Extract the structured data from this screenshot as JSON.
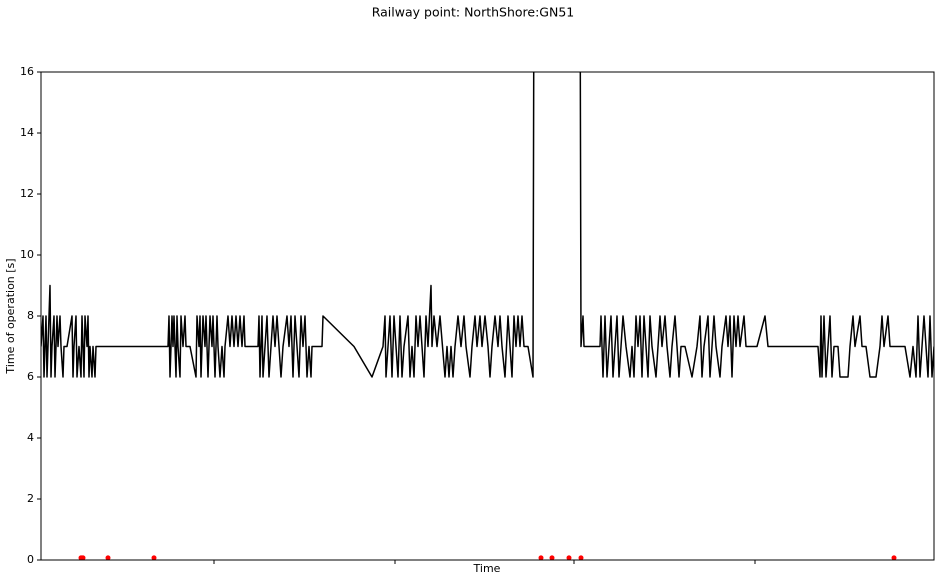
{
  "chart_data": {
    "type": "line",
    "title": "Railway point: NorthShore:GN51",
    "xlabel": "Time",
    "ylabel": "Time of operation [s]",
    "xlim": [
      41,
      934
    ],
    "ylim": [
      0,
      16
    ],
    "xticks": [
      214,
      395,
      574,
      755
    ],
    "yticks": [
      0,
      2,
      4,
      6,
      8,
      10,
      12,
      14,
      16
    ],
    "series": [
      {
        "type": "line",
        "color": "#000000",
        "x": [
          41,
          43,
          44,
          45,
          46,
          47,
          48,
          49,
          50,
          51,
          52,
          54,
          55,
          57,
          58,
          60,
          61,
          63,
          64,
          67,
          72,
          73,
          74,
          76,
          77,
          79,
          81,
          82,
          84,
          85,
          87,
          88,
          89,
          90,
          92,
          93,
          95,
          96,
          168,
          169,
          170,
          172,
          173,
          174,
          176,
          177,
          178,
          180,
          181,
          183,
          185,
          186,
          190,
          196,
          197,
          199,
          200,
          201,
          203,
          205,
          206,
          208,
          210,
          212,
          213,
          215,
          217,
          218,
          220,
          222,
          224,
          225,
          228,
          230,
          232,
          234,
          236,
          238,
          240,
          242,
          244,
          245,
          258,
          259,
          260,
          262,
          263,
          265,
          267,
          269,
          271,
          273,
          275,
          277,
          279,
          281,
          283,
          287,
          289,
          291,
          293,
          295,
          297,
          299,
          301,
          303,
          305,
          307,
          309,
          311,
          312,
          322,
          323,
          354,
          372,
          383,
          385,
          386,
          388,
          390,
          392,
          394,
          396,
          398,
          400,
          402,
          404,
          408,
          410,
          412,
          414,
          416,
          418,
          420,
          422,
          424,
          426,
          428,
          431,
          432,
          434,
          437,
          440,
          445,
          447,
          449,
          451,
          453,
          455,
          458,
          461,
          464,
          466,
          470,
          472,
          475,
          477,
          480,
          482,
          485,
          488,
          490,
          492,
          495,
          498,
          500,
          502,
          505,
          508,
          510,
          512,
          514,
          516,
          518,
          520,
          522,
          524,
          528,
          533,
          534,
          580,
          581,
          583,
          584,
          600,
          601,
          603,
          605,
          607,
          609,
          611,
          613,
          615,
          617,
          619,
          621,
          623,
          626,
          630,
          632,
          634,
          636,
          638,
          640,
          642,
          644,
          646,
          648,
          650,
          652,
          656,
          658,
          660,
          662,
          665,
          667,
          670,
          672,
          675,
          677,
          679,
          681,
          685,
          692,
          697,
          700,
          702,
          704,
          708,
          710,
          712,
          714,
          716,
          720,
          722,
          726,
          728,
          730,
          732,
          734,
          736,
          738,
          740,
          744,
          746,
          757,
          765,
          768,
          818,
          820,
          821,
          822,
          824,
          826,
          828,
          830,
          832,
          834,
          838,
          840,
          848,
          850,
          853,
          855,
          860,
          862,
          866,
          870,
          876,
          880,
          882,
          884,
          888,
          890,
          905,
          910,
          913,
          916,
          918,
          920,
          922,
          924,
          926,
          928,
          930,
          932,
          934
        ],
        "values": [
          7,
          8,
          6,
          7,
          8,
          6,
          7,
          8,
          9,
          6,
          7,
          8,
          6,
          8,
          7,
          8,
          7,
          6,
          7,
          7,
          8,
          6,
          7,
          8,
          6,
          7,
          6,
          8,
          6,
          8,
          7,
          8,
          6,
          7,
          6,
          7,
          6,
          7,
          7,
          8,
          6,
          8,
          7,
          8,
          6,
          8,
          7,
          6,
          8,
          7,
          8,
          7,
          7,
          6,
          8,
          7,
          8,
          6,
          8,
          7,
          8,
          6,
          8,
          7,
          8,
          6,
          8,
          7,
          6,
          7,
          6,
          7,
          8,
          7,
          8,
          7,
          8,
          7,
          8,
          7,
          8,
          7,
          7,
          8,
          6,
          8,
          6,
          7,
          8,
          6,
          7,
          8,
          7,
          8,
          7,
          6,
          7,
          8,
          7,
          8,
          6,
          8,
          7,
          6,
          8,
          7,
          8,
          6,
          7,
          6,
          7,
          7,
          8,
          7,
          6,
          7,
          8,
          6,
          7,
          8,
          6,
          8,
          7,
          6,
          8,
          6,
          7,
          8,
          6,
          7,
          6,
          8,
          7,
          8,
          7,
          6,
          8,
          7,
          9,
          7,
          8,
          7,
          8,
          6,
          7,
          6,
          7,
          6,
          7,
          8,
          7,
          8,
          7,
          6,
          7,
          8,
          7,
          8,
          7,
          8,
          7,
          6,
          7,
          8,
          7,
          8,
          7,
          6,
          8,
          7,
          6,
          8,
          7,
          8,
          7,
          8,
          7,
          7,
          6,
          20,
          20,
          7,
          8,
          7,
          7,
          8,
          6,
          8,
          6,
          7,
          8,
          6,
          7,
          8,
          6,
          7,
          8,
          7,
          6,
          7,
          6,
          8,
          7,
          8,
          6,
          8,
          7,
          6,
          8,
          7,
          6,
          7,
          8,
          7,
          8,
          7,
          6,
          7,
          8,
          7,
          6,
          7,
          7,
          6,
          7,
          8,
          6,
          7,
          8,
          6,
          7,
          8,
          7,
          6,
          7,
          8,
          7,
          8,
          6,
          8,
          7,
          8,
          7,
          8,
          7,
          7,
          8,
          7,
          7,
          6,
          8,
          6,
          8,
          6,
          7,
          8,
          6,
          7,
          7,
          6,
          6,
          7,
          8,
          7,
          8,
          7,
          7,
          6,
          6,
          7,
          8,
          7,
          8,
          7,
          7,
          6,
          7,
          6,
          8,
          6,
          7,
          8,
          7,
          6,
          8,
          6,
          7
        ]
      },
      {
        "type": "scatter",
        "color": "#ff0000",
        "x": [
          81,
          82,
          83,
          108,
          154,
          541,
          552,
          569,
          581,
          894
        ],
        "values": [
          0.07,
          0.07,
          0.07,
          0.07,
          0.07,
          0.07,
          0.07,
          0.07,
          0.07,
          0.07
        ]
      }
    ]
  }
}
